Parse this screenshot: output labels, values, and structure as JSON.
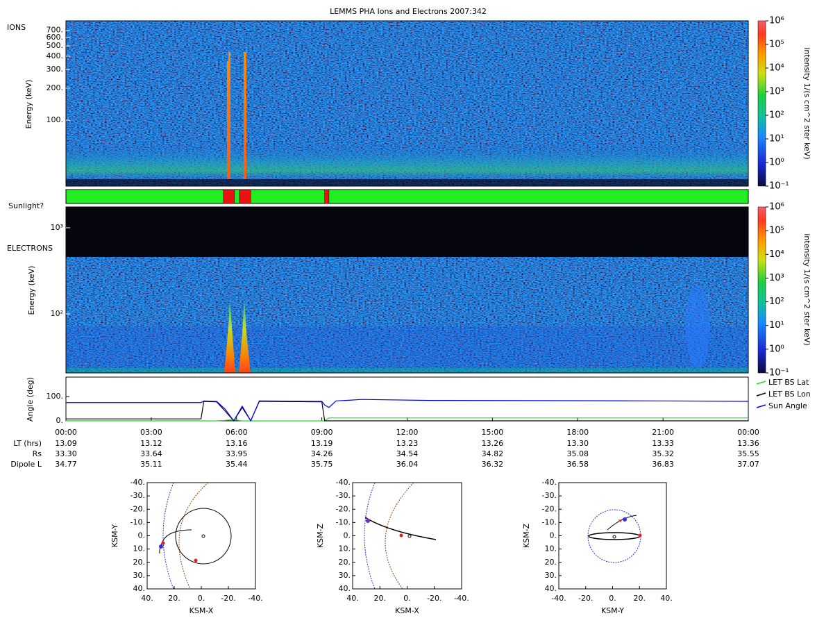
{
  "title": "LEMMS PHA Ions and Electrons  2007:342",
  "ions": {
    "label": "IONS",
    "ylabel": "Energy (keV)",
    "log": true,
    "ylim": [
      24,
      860
    ],
    "yticks": [
      {
        "value": 700,
        "label": "700."
      },
      {
        "value": 600,
        "label": "600."
      },
      {
        "value": 500,
        "label": "500."
      },
      {
        "value": 400,
        "label": "400."
      },
      {
        "value": 300,
        "label": "300."
      },
      {
        "value": 200,
        "label": "200."
      },
      {
        "value": 100,
        "label": "100."
      }
    ]
  },
  "sunlight": {
    "label": "Sunlight?",
    "shadow": [
      [
        5.54,
        5.93
      ],
      [
        6.1,
        6.5
      ],
      [
        9.1,
        9.25
      ]
    ]
  },
  "electrons": {
    "label": "ELECTRONS",
    "ylabel": "Energy (keV)",
    "log": true,
    "ylim": [
      20.6,
      1745
    ],
    "yticks": [
      {
        "value": 1000,
        "label": "10³"
      },
      {
        "value": 100,
        "label": "10²"
      }
    ]
  },
  "colorbar": {
    "label": "intensity 1/(s cm^2 ster keV)",
    "log": true,
    "ylim": [
      0.1,
      1000000
    ],
    "ticks": [
      {
        "value": 1000000,
        "label": "10⁶"
      },
      {
        "value": 100000,
        "label": "10⁵"
      },
      {
        "value": 10000,
        "label": "10⁴"
      },
      {
        "value": 1000,
        "label": "10³"
      },
      {
        "value": 100,
        "label": "10²"
      },
      {
        "value": 10,
        "label": "10¹"
      },
      {
        "value": 1,
        "label": "10⁰"
      },
      {
        "value": 0.1,
        "label": "10⁻¹"
      }
    ]
  },
  "chart_data": {
    "type": "line",
    "ylabel": "Angle (deg)",
    "x": [
      0,
      4.75,
      4.85,
      5.3,
      5.6,
      5.9,
      6.2,
      6.5,
      6.8,
      9.0,
      9.1,
      9.25,
      9.5,
      10,
      10.4,
      12.8,
      13,
      21,
      24
    ],
    "xlim": [
      0,
      24
    ],
    "xticks": [
      {
        "value": 0,
        "label": "00:00"
      },
      {
        "value": 3,
        "label": "03:00"
      },
      {
        "value": 6,
        "label": "06:00"
      },
      {
        "value": 9,
        "label": "09:00"
      },
      {
        "value": 12,
        "label": "12:00"
      },
      {
        "value": 15,
        "label": "15:00"
      },
      {
        "value": 18,
        "label": "18:00"
      },
      {
        "value": 21,
        "label": "21:00"
      },
      {
        "value": 24,
        "label": "00:00"
      }
    ],
    "ylim": [
      0,
      180
    ],
    "yticks": [
      {
        "value": 0,
        "label": "0."
      },
      {
        "value": 100,
        "label": "100."
      }
    ],
    "series": [
      {
        "name": "LET BS Lat",
        "color": "#22dd22",
        "values": [
          0,
          0,
          0,
          0,
          2,
          5,
          0,
          0,
          0,
          0,
          0,
          12,
          12,
          12,
          12,
          12,
          12,
          12,
          12
        ]
      },
      {
        "name": "LET BS Lon",
        "color": "#000000",
        "values": [
          8,
          8,
          80,
          78,
          40,
          0,
          55,
          0,
          80,
          78,
          0,
          0,
          0,
          0,
          0,
          0,
          0,
          0,
          0
        ]
      },
      {
        "name": "Sun Angle",
        "color": "#0000ee",
        "values": [
          75,
          75,
          82,
          80,
          48,
          0,
          60,
          0,
          82,
          80,
          65,
          55,
          82,
          85,
          88,
          84,
          84,
          82,
          80
        ]
      }
    ]
  },
  "rows": [
    {
      "label": "LT (hrs)",
      "values": [
        "13.09",
        "13.12",
        "13.16",
        "13.19",
        "13.23",
        "13.26",
        "13.30",
        "13.33",
        "13.36"
      ]
    },
    {
      "label": "Rs",
      "values": [
        "33.30",
        "33.64",
        "33.95",
        "34.26",
        "34.54",
        "34.82",
        "35.08",
        "35.32",
        "35.55"
      ]
    },
    {
      "label": "Dipole L",
      "values": [
        "34.77",
        "35.11",
        "35.44",
        "35.75",
        "36.04",
        "36.32",
        "36.58",
        "36.83",
        "37.07"
      ]
    }
  ],
  "orbits": [
    {
      "xlabel": "KSM-X",
      "ylabel": "KSM-Y",
      "xlim": [
        40,
        -40
      ],
      "ylim": [
        -40,
        40
      ],
      "xticks": [
        {
          "value": 40,
          "label": "40."
        },
        {
          "value": 20,
          "label": "20."
        },
        {
          "value": 0,
          "label": "0."
        },
        {
          "value": -20,
          "label": "-20."
        },
        {
          "value": -40,
          "label": "-40."
        }
      ],
      "yticks": [
        {
          "value": -40,
          "label": "-40."
        },
        {
          "value": -30,
          "label": "-30."
        },
        {
          "value": -20,
          "label": "-20."
        },
        {
          "value": -10,
          "label": "-10."
        },
        {
          "value": 0,
          "label": "0."
        },
        {
          "value": 10,
          "label": "10."
        },
        {
          "value": 20,
          "label": "20."
        },
        {
          "value": 30,
          "label": "30."
        },
        {
          "value": 40,
          "label": "40."
        }
      ]
    },
    {
      "xlabel": "KSM-X",
      "ylabel": "KSM-Z",
      "xlim": [
        40,
        -40
      ],
      "ylim": [
        -40,
        40
      ],
      "xticks": [
        {
          "value": 40,
          "label": "40."
        },
        {
          "value": 20,
          "label": "20."
        },
        {
          "value": 0,
          "label": "0."
        },
        {
          "value": -20,
          "label": "-20."
        },
        {
          "value": -40,
          "label": "-40."
        }
      ],
      "yticks": [
        {
          "value": -40,
          "label": "-40."
        },
        {
          "value": -30,
          "label": "-30."
        },
        {
          "value": -20,
          "label": "-20."
        },
        {
          "value": -10,
          "label": "-10."
        },
        {
          "value": 0,
          "label": "0."
        },
        {
          "value": 10,
          "label": "10."
        },
        {
          "value": 20,
          "label": "20."
        },
        {
          "value": 30,
          "label": "30."
        },
        {
          "value": 40,
          "label": "40."
        }
      ]
    },
    {
      "xlabel": "KSM-Y",
      "ylabel": "KSM-Z",
      "xlim": [
        -40,
        40
      ],
      "ylim": [
        -40,
        40
      ],
      "xticks": [
        {
          "value": -40,
          "label": "-40."
        },
        {
          "value": -20,
          "label": "-20."
        },
        {
          "value": 0,
          "label": "0."
        },
        {
          "value": 20,
          "label": "20."
        },
        {
          "value": 40,
          "label": "40."
        }
      ],
      "yticks": [
        {
          "value": -40,
          "label": "-40."
        },
        {
          "value": -30,
          "label": "-30."
        },
        {
          "value": -20,
          "label": "-20."
        },
        {
          "value": -10,
          "label": "-10."
        },
        {
          "value": 0,
          "label": "0."
        },
        {
          "value": 10,
          "label": "10."
        },
        {
          "value": 20,
          "label": "20."
        },
        {
          "value": 30,
          "label": "30."
        },
        {
          "value": 40,
          "label": "40."
        }
      ]
    }
  ]
}
